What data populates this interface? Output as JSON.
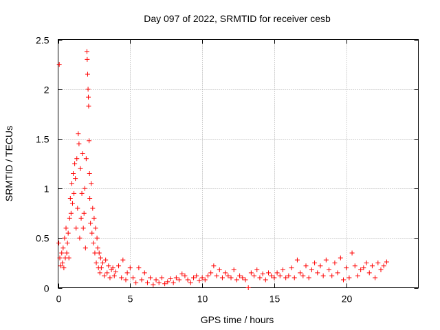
{
  "chart_data": {
    "type": "scatter",
    "title": "Day 097 of 2022, SRMTID for receiver cesb",
    "xlabel": "GPS time / hours",
    "ylabel": "SRMTID / TECUs",
    "xlim": [
      0,
      25
    ],
    "ylim": [
      0,
      2.5
    ],
    "xticks": [
      0,
      5,
      10,
      15,
      20
    ],
    "yticks": [
      0,
      0.5,
      1,
      1.5,
      2,
      2.5
    ],
    "xtick_labels": [
      "0",
      "5",
      "10",
      "15",
      "20"
    ],
    "ytick_labels": [
      "0",
      "0.5",
      "1",
      "1.5",
      "2",
      "2.5"
    ],
    "grid": true,
    "marker": "+",
    "series": [
      {
        "name": "SRMTID",
        "color": "#ff0000",
        "points": [
          [
            0.05,
            0.45
          ],
          [
            0.08,
            2.25
          ],
          [
            0.12,
            0.3
          ],
          [
            0.18,
            0.22
          ],
          [
            0.25,
            0.35
          ],
          [
            0.3,
            0.25
          ],
          [
            0.35,
            0.4
          ],
          [
            0.4,
            0.2
          ],
          [
            0.45,
            0.5
          ],
          [
            0.5,
            0.3
          ],
          [
            0.55,
            0.6
          ],
          [
            0.6,
            0.35
          ],
          [
            0.65,
            0.45
          ],
          [
            0.7,
            0.55
          ],
          [
            0.75,
            0.3
          ],
          [
            0.8,
            0.7
          ],
          [
            0.85,
            0.9
          ],
          [
            0.9,
            0.75
          ],
          [
            0.95,
            1.05
          ],
          [
            1.0,
            0.85
          ],
          [
            1.05,
            1.15
          ],
          [
            1.1,
            0.95
          ],
          [
            1.15,
            1.25
          ],
          [
            1.2,
            1.1
          ],
          [
            1.25,
            0.6
          ],
          [
            1.3,
            1.3
          ],
          [
            1.35,
            0.8
          ],
          [
            1.4,
            1.55
          ],
          [
            1.45,
            1.45
          ],
          [
            1.5,
            0.5
          ],
          [
            1.55,
            1.2
          ],
          [
            1.6,
            0.7
          ],
          [
            1.65,
            0.95
          ],
          [
            1.7,
            1.35
          ],
          [
            1.75,
            0.6
          ],
          [
            1.8,
            0.75
          ],
          [
            1.85,
            1.0
          ],
          [
            1.9,
            0.4
          ],
          [
            1.95,
            1.3
          ],
          [
            2.0,
            2.38
          ],
          [
            2.02,
            2.3
          ],
          [
            2.05,
            2.15
          ],
          [
            2.08,
            2.0
          ],
          [
            2.1,
            1.92
          ],
          [
            2.12,
            1.83
          ],
          [
            2.15,
            1.48
          ],
          [
            2.18,
            1.15
          ],
          [
            2.2,
            0.9
          ],
          [
            2.25,
            0.65
          ],
          [
            2.3,
            1.05
          ],
          [
            2.35,
            0.55
          ],
          [
            2.4,
            0.8
          ],
          [
            2.45,
            0.45
          ],
          [
            2.5,
            0.7
          ],
          [
            2.55,
            0.35
          ],
          [
            2.6,
            0.6
          ],
          [
            2.65,
            0.25
          ],
          [
            2.7,
            0.5
          ],
          [
            2.75,
            0.4
          ],
          [
            2.8,
            0.2
          ],
          [
            2.85,
            0.35
          ],
          [
            2.9,
            0.15
          ],
          [
            2.95,
            0.3
          ],
          [
            3.0,
            0.2
          ],
          [
            3.1,
            0.25
          ],
          [
            3.2,
            0.12
          ],
          [
            3.3,
            0.28
          ],
          [
            3.4,
            0.15
          ],
          [
            3.5,
            0.22
          ],
          [
            3.6,
            0.1
          ],
          [
            3.7,
            0.18
          ],
          [
            3.8,
            0.2
          ],
          [
            3.9,
            0.12
          ],
          [
            4.0,
            0.16
          ],
          [
            4.2,
            0.22
          ],
          [
            4.4,
            0.1
          ],
          [
            4.5,
            0.28
          ],
          [
            4.7,
            0.08
          ],
          [
            4.8,
            0.15
          ],
          [
            5.0,
            0.2
          ],
          [
            5.2,
            0.1
          ],
          [
            5.4,
            0.05
          ],
          [
            5.6,
            0.2
          ],
          [
            5.8,
            0.08
          ],
          [
            6.0,
            0.15
          ],
          [
            6.2,
            0.05
          ],
          [
            6.4,
            0.1
          ],
          [
            6.6,
            0.03
          ],
          [
            6.8,
            0.08
          ],
          [
            7.0,
            0.05
          ],
          [
            7.2,
            0.1
          ],
          [
            7.4,
            0.04
          ],
          [
            7.6,
            0.06
          ],
          [
            7.8,
            0.09
          ],
          [
            8.0,
            0.05
          ],
          [
            8.2,
            0.1
          ],
          [
            8.4,
            0.08
          ],
          [
            8.6,
            0.14
          ],
          [
            8.8,
            0.12
          ],
          [
            9.0,
            0.08
          ],
          [
            9.2,
            0.05
          ],
          [
            9.4,
            0.1
          ],
          [
            9.6,
            0.12
          ],
          [
            9.8,
            0.07
          ],
          [
            10.0,
            0.1
          ],
          [
            10.2,
            0.08
          ],
          [
            10.4,
            0.12
          ],
          [
            10.6,
            0.15
          ],
          [
            10.8,
            0.22
          ],
          [
            11.0,
            0.12
          ],
          [
            11.2,
            0.18
          ],
          [
            11.4,
            0.1
          ],
          [
            11.6,
            0.15
          ],
          [
            11.8,
            0.12
          ],
          [
            12.0,
            0.1
          ],
          [
            12.2,
            0.18
          ],
          [
            12.4,
            0.08
          ],
          [
            12.6,
            0.12
          ],
          [
            12.8,
            0.1
          ],
          [
            13.0,
            0.08
          ],
          [
            13.2,
            0.0
          ],
          [
            13.4,
            0.15
          ],
          [
            13.6,
            0.12
          ],
          [
            13.8,
            0.18
          ],
          [
            14.0,
            0.1
          ],
          [
            14.2,
            0.14
          ],
          [
            14.4,
            0.08
          ],
          [
            14.6,
            0.15
          ],
          [
            14.8,
            0.12
          ],
          [
            15.0,
            0.1
          ],
          [
            15.2,
            0.15
          ],
          [
            15.4,
            0.12
          ],
          [
            15.6,
            0.18
          ],
          [
            15.8,
            0.1
          ],
          [
            16.0,
            0.12
          ],
          [
            16.2,
            0.2
          ],
          [
            16.4,
            0.1
          ],
          [
            16.6,
            0.28
          ],
          [
            16.8,
            0.15
          ],
          [
            17.0,
            0.12
          ],
          [
            17.2,
            0.22
          ],
          [
            17.4,
            0.1
          ],
          [
            17.6,
            0.18
          ],
          [
            17.8,
            0.25
          ],
          [
            18.0,
            0.15
          ],
          [
            18.2,
            0.22
          ],
          [
            18.4,
            0.12
          ],
          [
            18.6,
            0.28
          ],
          [
            18.8,
            0.18
          ],
          [
            19.0,
            0.12
          ],
          [
            19.2,
            0.25
          ],
          [
            19.4,
            0.15
          ],
          [
            19.6,
            0.3
          ],
          [
            19.8,
            0.08
          ],
          [
            20.0,
            0.2
          ],
          [
            20.2,
            0.1
          ],
          [
            20.4,
            0.35
          ],
          [
            20.6,
            0.22
          ],
          [
            20.8,
            0.12
          ],
          [
            21.0,
            0.18
          ],
          [
            21.2,
            0.2
          ],
          [
            21.4,
            0.25
          ],
          [
            21.6,
            0.15
          ],
          [
            21.8,
            0.22
          ],
          [
            22.0,
            0.1
          ],
          [
            22.2,
            0.25
          ],
          [
            22.4,
            0.18
          ],
          [
            22.6,
            0.22
          ],
          [
            22.8,
            0.26
          ]
        ]
      }
    ]
  }
}
